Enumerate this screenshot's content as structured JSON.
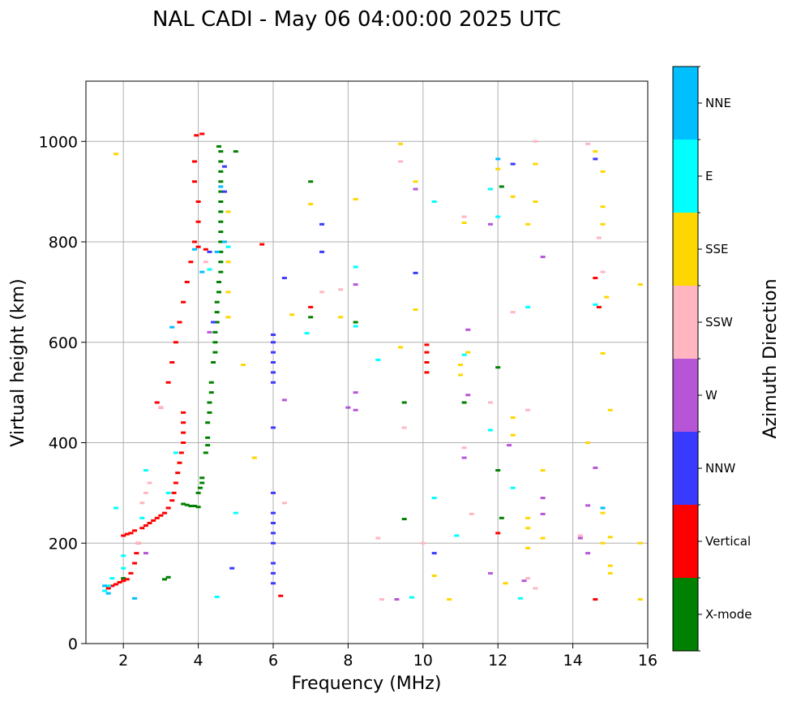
{
  "chart_data": {
    "type": "scatter",
    "title": "NAL CADI - May 06 04:00:00 2025 UTC",
    "xlabel": "Frequency (MHz)",
    "ylabel": "Virtual height (km)",
    "xlim": [
      1,
      16
    ],
    "ylim": [
      0,
      1120
    ],
    "xticks": [
      2,
      4,
      6,
      8,
      10,
      12,
      14,
      16
    ],
    "yticks": [
      0,
      200,
      400,
      600,
      800,
      1000
    ],
    "grid": true,
    "colorbar": {
      "title": "Azimuth Direction",
      "categories": [
        {
          "name": "X-mode",
          "color": "#008000"
        },
        {
          "name": "Vertical",
          "color": "#ff0000"
        },
        {
          "name": "NNW",
          "color": "#3a3aff"
        },
        {
          "name": "W",
          "color": "#b656d6"
        },
        {
          "name": "SSW",
          "color": "#ffb6c1"
        },
        {
          "name": "SSE",
          "color": "#ffd700"
        },
        {
          "name": "E",
          "color": "#00ffff"
        },
        {
          "name": "NNE",
          "color": "#00bfff"
        }
      ]
    },
    "series": [
      {
        "name": "X-mode",
        "points": [
          [
            4.0,
            272
          ],
          [
            3.9,
            274
          ],
          [
            3.8,
            274
          ],
          [
            3.7,
            276
          ],
          [
            3.6,
            278
          ],
          [
            4.0,
            300
          ],
          [
            4.05,
            310
          ],
          [
            4.1,
            320
          ],
          [
            4.1,
            330
          ],
          [
            4.2,
            380
          ],
          [
            4.25,
            395
          ],
          [
            4.25,
            410
          ],
          [
            4.25,
            440
          ],
          [
            4.3,
            460
          ],
          [
            4.3,
            480
          ],
          [
            4.35,
            500
          ],
          [
            4.35,
            520
          ],
          [
            4.4,
            560
          ],
          [
            4.45,
            580
          ],
          [
            4.45,
            600
          ],
          [
            4.45,
            620
          ],
          [
            4.5,
            640
          ],
          [
            4.5,
            660
          ],
          [
            4.5,
            680
          ],
          [
            4.55,
            700
          ],
          [
            4.55,
            720
          ],
          [
            4.6,
            740
          ],
          [
            4.6,
            760
          ],
          [
            4.6,
            780
          ],
          [
            4.6,
            800
          ],
          [
            4.6,
            820
          ],
          [
            4.6,
            840
          ],
          [
            4.6,
            860
          ],
          [
            4.6,
            880
          ],
          [
            4.6,
            900
          ],
          [
            4.6,
            920
          ],
          [
            4.6,
            940
          ],
          [
            4.6,
            960
          ],
          [
            4.6,
            980
          ],
          [
            4.55,
            990
          ],
          [
            2.0,
            130
          ],
          [
            3.1,
            128
          ],
          [
            3.2,
            132
          ],
          [
            5.0,
            980
          ],
          [
            7.0,
            920
          ],
          [
            7.0,
            650
          ],
          [
            8.2,
            640
          ],
          [
            9.5,
            480
          ],
          [
            9.5,
            248
          ],
          [
            12.0,
            550
          ],
          [
            12.0,
            345
          ],
          [
            12.1,
            250
          ],
          [
            12.1,
            910
          ],
          [
            11.1,
            480
          ]
        ]
      },
      {
        "name": "Vertical",
        "points": [
          [
            1.6,
            110
          ],
          [
            1.7,
            115
          ],
          [
            1.8,
            118
          ],
          [
            1.9,
            122
          ],
          [
            2.0,
            125
          ],
          [
            2.1,
            128
          ],
          [
            2.2,
            140
          ],
          [
            2.3,
            160
          ],
          [
            2.35,
            180
          ],
          [
            2.4,
            200
          ],
          [
            2.0,
            215
          ],
          [
            2.1,
            218
          ],
          [
            2.2,
            220
          ],
          [
            2.3,
            225
          ],
          [
            2.5,
            230
          ],
          [
            2.6,
            235
          ],
          [
            2.7,
            240
          ],
          [
            2.8,
            245
          ],
          [
            2.9,
            250
          ],
          [
            3.0,
            255
          ],
          [
            3.1,
            260
          ],
          [
            3.2,
            270
          ],
          [
            3.3,
            285
          ],
          [
            3.35,
            300
          ],
          [
            3.4,
            320
          ],
          [
            3.45,
            340
          ],
          [
            3.5,
            360
          ],
          [
            3.55,
            380
          ],
          [
            3.6,
            400
          ],
          [
            3.6,
            420
          ],
          [
            3.6,
            440
          ],
          [
            3.6,
            460
          ],
          [
            3.0,
            470
          ],
          [
            2.9,
            480
          ],
          [
            3.2,
            520
          ],
          [
            3.3,
            560
          ],
          [
            3.4,
            600
          ],
          [
            3.5,
            640
          ],
          [
            3.6,
            680
          ],
          [
            3.7,
            720
          ],
          [
            3.8,
            760
          ],
          [
            3.9,
            800
          ],
          [
            4.0,
            840
          ],
          [
            4.0,
            880
          ],
          [
            3.9,
            920
          ],
          [
            3.9,
            960
          ],
          [
            4.1,
            1015
          ],
          [
            3.95,
            1012
          ],
          [
            4.0,
            790
          ],
          [
            4.2,
            785
          ],
          [
            5.7,
            795
          ],
          [
            6.2,
            95
          ],
          [
            7.0,
            670
          ],
          [
            10.1,
            540
          ],
          [
            10.1,
            560
          ],
          [
            10.1,
            580
          ],
          [
            10.1,
            595
          ],
          [
            14.6,
            88
          ],
          [
            14.7,
            670
          ],
          [
            12.0,
            220
          ],
          [
            14.6,
            728
          ]
        ]
      },
      {
        "name": "NNW",
        "points": [
          [
            6.0,
            120
          ],
          [
            6.0,
            140
          ],
          [
            6.0,
            160
          ],
          [
            6.0,
            200
          ],
          [
            6.0,
            220
          ],
          [
            6.0,
            240
          ],
          [
            6.0,
            260
          ],
          [
            6.0,
            300
          ],
          [
            6.0,
            430
          ],
          [
            6.0,
            520
          ],
          [
            6.0,
            540
          ],
          [
            6.0,
            560
          ],
          [
            6.0,
            580
          ],
          [
            6.0,
            600
          ],
          [
            6.0,
            615
          ],
          [
            4.7,
            950
          ],
          [
            4.7,
            900
          ],
          [
            4.3,
            780
          ],
          [
            4.4,
            640
          ],
          [
            4.9,
            150
          ],
          [
            7.3,
            780
          ],
          [
            7.3,
            835
          ],
          [
            12.4,
            955
          ],
          [
            14.6,
            965
          ],
          [
            10.3,
            180
          ],
          [
            9.8,
            738
          ],
          [
            6.3,
            728
          ]
        ]
      },
      {
        "name": "W",
        "points": [
          [
            2.6,
            180
          ],
          [
            4.3,
            620
          ],
          [
            6.3,
            485
          ],
          [
            8.0,
            470
          ],
          [
            8.2,
            500
          ],
          [
            8.2,
            715
          ],
          [
            8.2,
            465
          ],
          [
            9.8,
            905
          ],
          [
            11.2,
            495
          ],
          [
            11.2,
            625
          ],
          [
            11.1,
            370
          ],
          [
            11.8,
            835
          ],
          [
            12.3,
            395
          ],
          [
            13.2,
            770
          ],
          [
            13.2,
            290
          ],
          [
            13.2,
            258
          ],
          [
            14.2,
            210
          ],
          [
            14.4,
            275
          ],
          [
            14.6,
            350
          ],
          [
            14.4,
            180
          ],
          [
            9.3,
            88
          ],
          [
            12.7,
            125
          ],
          [
            11.8,
            140
          ]
        ]
      },
      {
        "name": "SSW",
        "points": [
          [
            2.4,
            200
          ],
          [
            2.5,
            280
          ],
          [
            2.6,
            300
          ],
          [
            2.7,
            320
          ],
          [
            3.0,
            470
          ],
          [
            4.2,
            760
          ],
          [
            6.3,
            280
          ],
          [
            7.3,
            700
          ],
          [
            7.8,
            705
          ],
          [
            8.8,
            210
          ],
          [
            8.9,
            88
          ],
          [
            9.4,
            960
          ],
          [
            9.5,
            430
          ],
          [
            10.0,
            200
          ],
          [
            11.1,
            850
          ],
          [
            11.3,
            258
          ],
          [
            11.8,
            480
          ],
          [
            12.4,
            660
          ],
          [
            12.8,
            465
          ],
          [
            12.8,
            130
          ],
          [
            13.0,
            110
          ],
          [
            13.0,
            1000
          ],
          [
            14.4,
            995
          ],
          [
            14.7,
            808
          ],
          [
            14.8,
            740
          ],
          [
            14.2,
            215
          ],
          [
            11.1,
            390
          ]
        ]
      },
      {
        "name": "SSE",
        "points": [
          [
            1.8,
            975
          ],
          [
            4.8,
            860
          ],
          [
            4.8,
            760
          ],
          [
            4.8,
            700
          ],
          [
            4.8,
            650
          ],
          [
            5.2,
            555
          ],
          [
            5.5,
            370
          ],
          [
            6.5,
            655
          ],
          [
            7.0,
            875
          ],
          [
            7.8,
            650
          ],
          [
            8.2,
            885
          ],
          [
            9.4,
            995
          ],
          [
            9.4,
            590
          ],
          [
            9.8,
            665
          ],
          [
            9.8,
            920
          ],
          [
            10.3,
            135
          ],
          [
            10.7,
            88
          ],
          [
            11.0,
            555
          ],
          [
            11.0,
            535
          ],
          [
            11.2,
            580
          ],
          [
            11.1,
            838
          ],
          [
            12.0,
            945
          ],
          [
            12.2,
            120
          ],
          [
            12.4,
            890
          ],
          [
            12.4,
            450
          ],
          [
            12.4,
            415
          ],
          [
            12.8,
            835
          ],
          [
            12.8,
            250
          ],
          [
            12.8,
            230
          ],
          [
            12.8,
            190
          ],
          [
            13.0,
            880
          ],
          [
            13.0,
            955
          ],
          [
            13.2,
            345
          ],
          [
            13.2,
            210
          ],
          [
            14.4,
            400
          ],
          [
            14.6,
            980
          ],
          [
            14.8,
            940
          ],
          [
            14.8,
            870
          ],
          [
            14.8,
            835
          ],
          [
            14.8,
            578
          ],
          [
            14.8,
            260
          ],
          [
            14.8,
            200
          ],
          [
            14.9,
            690
          ],
          [
            15.0,
            465
          ],
          [
            15.0,
            155
          ],
          [
            15.0,
            140
          ],
          [
            15.0,
            212
          ],
          [
            15.8,
            715
          ],
          [
            15.8,
            200
          ],
          [
            15.8,
            88
          ]
        ]
      },
      {
        "name": "E",
        "points": [
          [
            1.5,
            105
          ],
          [
            1.6,
            115
          ],
          [
            1.7,
            130
          ],
          [
            1.8,
            270
          ],
          [
            2.0,
            150
          ],
          [
            2.0,
            175
          ],
          [
            2.5,
            250
          ],
          [
            2.6,
            345
          ],
          [
            3.2,
            300
          ],
          [
            3.4,
            380
          ],
          [
            4.3,
            745
          ],
          [
            4.8,
            790
          ],
          [
            4.5,
            93
          ],
          [
            5.0,
            260
          ],
          [
            6.9,
            618
          ],
          [
            8.2,
            750
          ],
          [
            8.2,
            632
          ],
          [
            8.8,
            565
          ],
          [
            9.7,
            92
          ],
          [
            10.3,
            290
          ],
          [
            10.3,
            880
          ],
          [
            10.9,
            215
          ],
          [
            11.1,
            575
          ],
          [
            11.8,
            425
          ],
          [
            11.8,
            905
          ],
          [
            12.0,
            850
          ],
          [
            12.4,
            310
          ],
          [
            12.6,
            90
          ],
          [
            12.8,
            670
          ],
          [
            14.6,
            675
          ]
        ]
      },
      {
        "name": "NNE",
        "points": [
          [
            1.5,
            115
          ],
          [
            1.6,
            100
          ],
          [
            2.3,
            90
          ],
          [
            3.3,
            630
          ],
          [
            3.9,
            785
          ],
          [
            4.1,
            740
          ],
          [
            4.5,
            780
          ],
          [
            4.6,
            910
          ],
          [
            4.7,
            800
          ],
          [
            12.0,
            965
          ],
          [
            14.8,
            270
          ]
        ]
      }
    ]
  }
}
